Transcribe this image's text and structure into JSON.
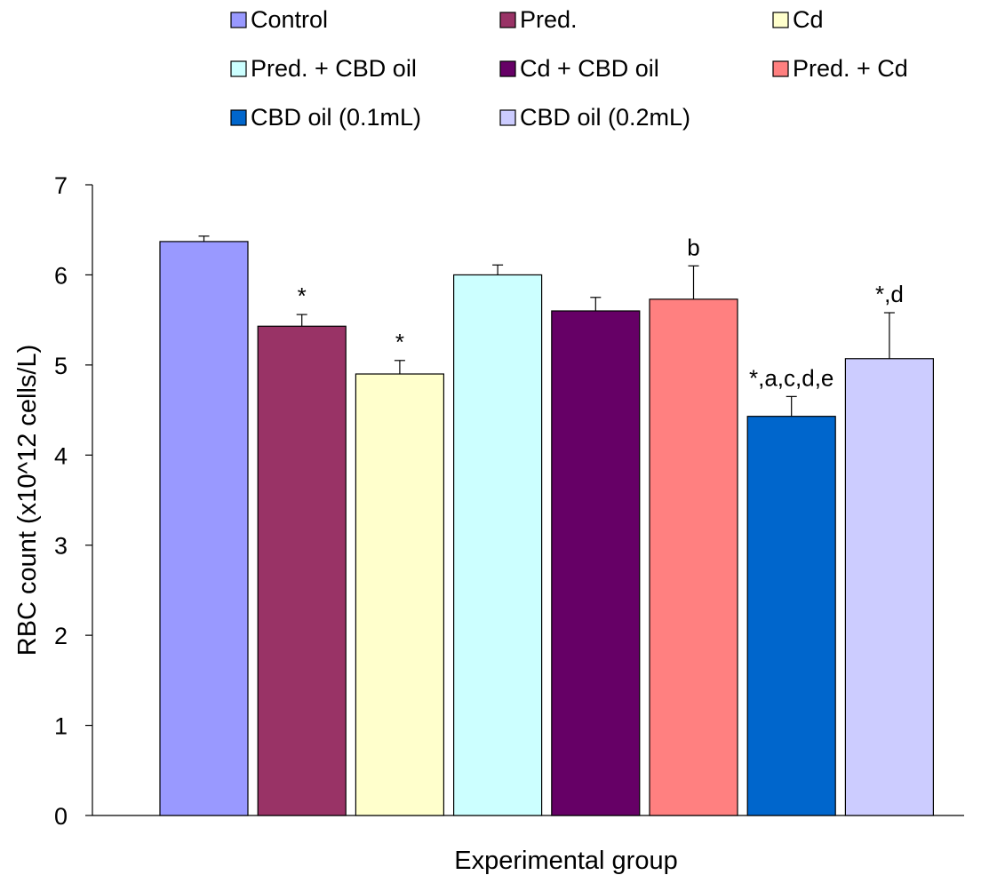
{
  "chart_data": {
    "type": "bar",
    "title": "",
    "xlabel": "Experimental group",
    "ylabel": "RBC count (x10^12 cells/L)",
    "ylim": [
      0,
      7
    ],
    "yticks": [
      0,
      1,
      2,
      3,
      4,
      5,
      6,
      7
    ],
    "grid": false,
    "legend_placement": "top",
    "categories": [
      "Control",
      "Pred.",
      "Cd",
      "Pred. + CBD oil",
      "Cd + CBD oil",
      "Pred. + Cd",
      "CBD oil (0.1mL)",
      "CBD oil (0.2mL)"
    ],
    "values": [
      6.37,
      5.43,
      4.9,
      6.0,
      5.6,
      5.73,
      4.43,
      5.07
    ],
    "errors": [
      0.06,
      0.13,
      0.15,
      0.11,
      0.15,
      0.37,
      0.22,
      0.51
    ],
    "colors": [
      "#9999ff",
      "#993366",
      "#ffffcc",
      "#ccffff",
      "#660066",
      "#ff8080",
      "#0066cc",
      "#ccccff"
    ],
    "annotations": [
      "",
      "*",
      "*",
      "",
      "",
      "b",
      "*,a,c,d,e",
      "*,d"
    ]
  }
}
